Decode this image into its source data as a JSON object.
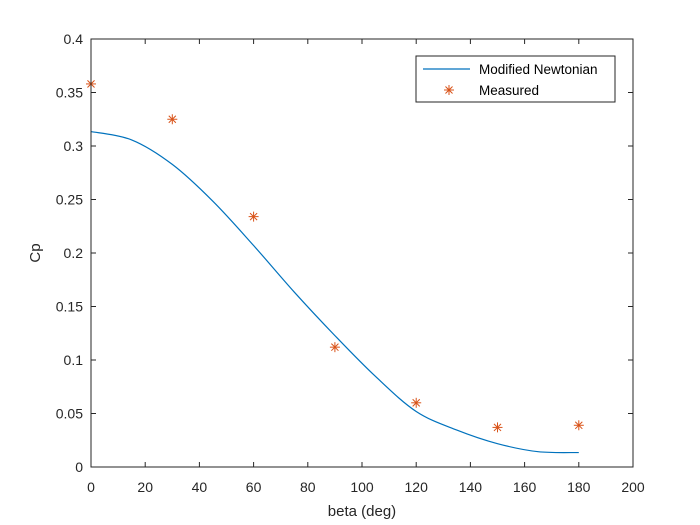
{
  "chart_data": {
    "type": "line",
    "title": "",
    "xlabel": "beta (deg)",
    "ylabel": "Cp",
    "xlim": [
      0,
      200
    ],
    "ylim": [
      0,
      0.4
    ],
    "xticks": [
      0,
      20,
      40,
      60,
      80,
      100,
      120,
      140,
      160,
      180,
      200
    ],
    "yticks": [
      0,
      0.05,
      0.1,
      0.15,
      0.2,
      0.25,
      0.3,
      0.35,
      0.4
    ],
    "xtick_labels": [
      "0",
      "20",
      "40",
      "60",
      "80",
      "100",
      "120",
      "140",
      "160",
      "180",
      "200"
    ],
    "ytick_labels": [
      "0",
      "0.05",
      "0.1",
      "0.15",
      "0.2",
      "0.25",
      "0.3",
      "0.35",
      "0.4"
    ],
    "grid": false,
    "legend_position": "top-right",
    "series": [
      {
        "name": "Modified Newtonian",
        "kind": "line",
        "color": "#0072BD",
        "x": [
          0,
          15,
          30,
          45,
          60,
          75,
          90,
          105,
          120,
          135,
          150,
          165,
          180
        ],
        "y": [
          0.3135,
          0.3057,
          0.2828,
          0.2483,
          0.207,
          0.1635,
          0.1228,
          0.0846,
          0.0519,
          0.0345,
          0.0218,
          0.0143,
          0.0135
        ]
      },
      {
        "name": "Measured",
        "kind": "scatter",
        "marker": "asterisk",
        "color": "#D95319",
        "x": [
          0,
          30,
          60,
          90,
          120,
          150,
          180
        ],
        "y": [
          0.358,
          0.325,
          0.234,
          0.112,
          0.06,
          0.037,
          0.039
        ]
      }
    ]
  }
}
